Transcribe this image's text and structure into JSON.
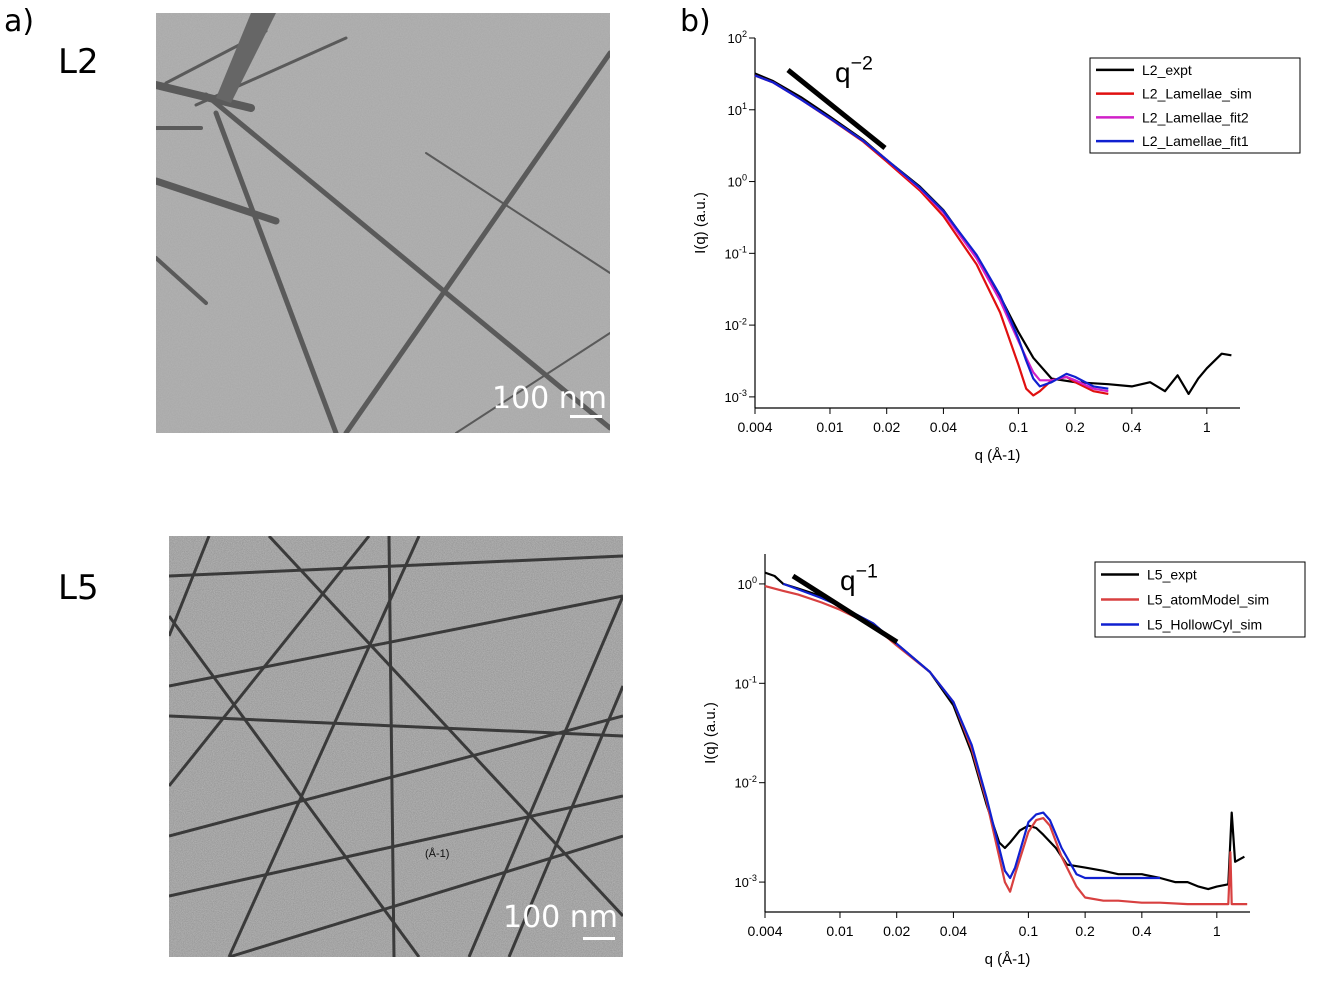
{
  "panels": {
    "a_label": "a)",
    "b_label": "b)"
  },
  "micrographs": [
    {
      "sample": "L2",
      "scale_label": "100 nm"
    },
    {
      "sample": "L5",
      "scale_label": "100 nm",
      "overlay_text": "(Å-1)"
    }
  ],
  "chart_data": [
    {
      "type": "line",
      "xlabel": "q (Å-1)",
      "ylabel": "I(q) (a.u.)",
      "xscale": "log",
      "yscale": "log",
      "xlim": [
        0.004,
        1.5
      ],
      "ylim": [
        0.0007,
        100
      ],
      "xticks": [
        "0.004",
        "0.01",
        "0.02",
        "0.04",
        "0.1",
        "0.2",
        "0.4",
        "1"
      ],
      "yticks": [
        {
          "base": "10",
          "exp": "-3"
        },
        {
          "base": "10",
          "exp": "-2"
        },
        {
          "base": "10",
          "exp": "-1"
        },
        {
          "base": "10",
          "exp": "0"
        },
        {
          "base": "10",
          "exp": "1"
        },
        {
          "base": "10",
          "exp": "2"
        }
      ],
      "annotation": {
        "base": "q",
        "exp": "−2"
      },
      "legend_position": "top-right",
      "colors": {
        "expt": "#000000",
        "sim": "#e01010",
        "fit2": "#d020c8",
        "fit1": "#1020d0"
      },
      "series": [
        {
          "name": "L2_expt",
          "color": "#000000",
          "x": [
            0.004,
            0.005,
            0.007,
            0.01,
            0.015,
            0.02,
            0.03,
            0.04,
            0.06,
            0.08,
            0.1,
            0.12,
            0.15,
            0.2,
            0.3,
            0.4,
            0.5,
            0.6,
            0.7,
            0.8,
            0.9,
            1.0,
            1.2,
            1.35
          ],
          "y": [
            32,
            25,
            15,
            8,
            3.8,
            2.0,
            0.85,
            0.4,
            0.09,
            0.025,
            0.008,
            0.0035,
            0.0018,
            0.0016,
            0.0015,
            0.0014,
            0.0016,
            0.0012,
            0.002,
            0.0011,
            0.0018,
            0.0025,
            0.004,
            0.0038
          ]
        },
        {
          "name": "L2_Lamellae_sim",
          "color": "#e01010",
          "x": [
            0.004,
            0.005,
            0.007,
            0.01,
            0.015,
            0.02,
            0.03,
            0.04,
            0.06,
            0.08,
            0.1,
            0.11,
            0.12,
            0.13,
            0.15,
            0.18,
            0.2,
            0.25,
            0.3
          ],
          "y": [
            30,
            24,
            14,
            7.5,
            3.6,
            1.9,
            0.75,
            0.33,
            0.07,
            0.015,
            0.0028,
            0.0013,
            0.00105,
            0.0012,
            0.0017,
            0.0019,
            0.0016,
            0.0012,
            0.0011
          ]
        },
        {
          "name": "L2_Lamellae_fit2",
          "color": "#d020c8",
          "x": [
            0.004,
            0.005,
            0.007,
            0.01,
            0.015,
            0.02,
            0.03,
            0.04,
            0.06,
            0.08,
            0.1,
            0.11,
            0.12,
            0.13,
            0.15,
            0.18,
            0.2,
            0.25,
            0.3
          ],
          "y": [
            30,
            24,
            14,
            7.6,
            3.7,
            2.0,
            0.8,
            0.37,
            0.085,
            0.022,
            0.006,
            0.0035,
            0.0022,
            0.0017,
            0.0017,
            0.0019,
            0.0017,
            0.0013,
            0.0012
          ]
        },
        {
          "name": "L2_Lamellae_fit1",
          "color": "#1020d0",
          "x": [
            0.004,
            0.005,
            0.007,
            0.01,
            0.015,
            0.02,
            0.03,
            0.04,
            0.06,
            0.08,
            0.1,
            0.11,
            0.12,
            0.13,
            0.15,
            0.18,
            0.2,
            0.25,
            0.3
          ],
          "y": [
            30,
            24,
            14,
            7.6,
            3.7,
            2.0,
            0.82,
            0.39,
            0.095,
            0.026,
            0.0065,
            0.0032,
            0.0018,
            0.0014,
            0.0016,
            0.0021,
            0.0019,
            0.0014,
            0.0013
          ]
        }
      ]
    },
    {
      "type": "line",
      "xlabel": "q (Å-1)",
      "ylabel": "I(q) (a.u.)",
      "xscale": "log",
      "yscale": "log",
      "xlim": [
        0.004,
        1.5
      ],
      "ylim": [
        0.0005,
        2
      ],
      "xticks": [
        "0.004",
        "0.01",
        "0.02",
        "0.04",
        "0.1",
        "0.2",
        "0.4",
        "1"
      ],
      "yticks": [
        {
          "base": "10",
          "exp": "-3"
        },
        {
          "base": "10",
          "exp": "-2"
        },
        {
          "base": "10",
          "exp": "-1"
        },
        {
          "base": "10",
          "exp": "0"
        }
      ],
      "annotation": {
        "base": "q",
        "exp": "−1"
      },
      "legend_position": "top-right",
      "colors": {
        "expt": "#000000",
        "atom": "#d84040",
        "hollow": "#1020d0"
      },
      "series": [
        {
          "name": "L5_expt",
          "color": "#000000",
          "x": [
            0.004,
            0.0045,
            0.005,
            0.006,
            0.008,
            0.01,
            0.015,
            0.02,
            0.03,
            0.04,
            0.05,
            0.06,
            0.07,
            0.075,
            0.08,
            0.09,
            0.1,
            0.11,
            0.12,
            0.14,
            0.16,
            0.2,
            0.25,
            0.3,
            0.4,
            0.5,
            0.6,
            0.7,
            0.8,
            0.9,
            1.0,
            1.15,
            1.2,
            1.25,
            1.4
          ],
          "y": [
            1.3,
            1.2,
            1.0,
            0.9,
            0.75,
            0.6,
            0.4,
            0.25,
            0.13,
            0.06,
            0.02,
            0.006,
            0.0025,
            0.0022,
            0.0025,
            0.0033,
            0.0037,
            0.0035,
            0.003,
            0.0022,
            0.0015,
            0.0014,
            0.0013,
            0.0012,
            0.0012,
            0.0011,
            0.001,
            0.001,
            0.0009,
            0.00085,
            0.0009,
            0.00095,
            0.005,
            0.0016,
            0.0018
          ]
        },
        {
          "name": "L5_atomModel_sim",
          "color": "#d84040",
          "x": [
            0.004,
            0.005,
            0.006,
            0.008,
            0.01,
            0.015,
            0.02,
            0.03,
            0.04,
            0.05,
            0.06,
            0.07,
            0.075,
            0.08,
            0.085,
            0.1,
            0.11,
            0.12,
            0.13,
            0.15,
            0.18,
            0.2,
            0.25,
            0.3,
            0.4,
            0.5,
            0.7,
            1.0,
            1.15,
            1.18,
            1.2,
            1.3,
            1.45
          ],
          "y": [
            0.95,
            0.85,
            0.78,
            0.65,
            0.55,
            0.38,
            0.24,
            0.13,
            0.065,
            0.022,
            0.0065,
            0.0018,
            0.001,
            0.0008,
            0.0012,
            0.0032,
            0.0042,
            0.0044,
            0.0037,
            0.0018,
            0.0009,
            0.0007,
            0.00065,
            0.00065,
            0.00062,
            0.00062,
            0.0006,
            0.0006,
            0.0006,
            0.002,
            0.0006,
            0.0006,
            0.0006
          ]
        },
        {
          "name": "L5_HollowCyl_sim",
          "color": "#1020d0",
          "x": [
            0.005,
            0.006,
            0.008,
            0.01,
            0.015,
            0.02,
            0.03,
            0.04,
            0.05,
            0.06,
            0.07,
            0.075,
            0.08,
            0.085,
            0.1,
            0.11,
            0.12,
            0.13,
            0.15,
            0.18,
            0.2,
            0.25,
            0.3,
            0.4,
            0.5
          ],
          "y": [
            1.0,
            0.88,
            0.72,
            0.6,
            0.4,
            0.25,
            0.13,
            0.065,
            0.024,
            0.007,
            0.0022,
            0.0013,
            0.0011,
            0.0014,
            0.004,
            0.0048,
            0.005,
            0.0042,
            0.0022,
            0.0012,
            0.0011,
            0.0011,
            0.0011,
            0.0011,
            0.0011
          ]
        }
      ]
    }
  ]
}
